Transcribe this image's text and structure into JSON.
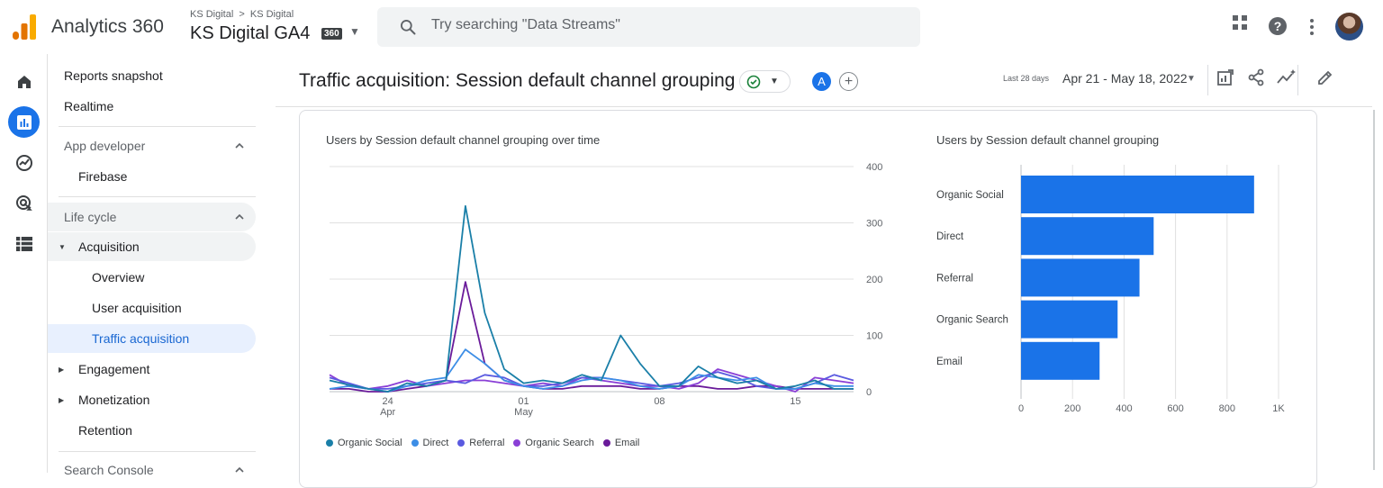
{
  "header": {
    "app_name": "Analytics 360",
    "account_crumb_1": "KS Digital",
    "account_crumb_2": "KS Digital",
    "property_name": "KS Digital GA4",
    "property_badge": "360",
    "search_placeholder": "Try searching \"Data Streams\"",
    "icons": [
      "apps-grid-icon",
      "help-icon",
      "more-vert-icon",
      "avatar"
    ]
  },
  "rail": {
    "items": [
      "home-icon",
      "reports-icon",
      "explore-icon",
      "advertising-icon",
      "configure-icon"
    ],
    "active": "reports-icon"
  },
  "nav": {
    "reports_snapshot": "Reports snapshot",
    "realtime": "Realtime",
    "app_developer": "App developer",
    "firebase": "Firebase",
    "life_cycle": "Life cycle",
    "acquisition": "Acquisition",
    "overview": "Overview",
    "user_acquisition": "User acquisition",
    "traffic_acquisition": "Traffic acquisition",
    "engagement": "Engagement",
    "monetization": "Monetization",
    "retention": "Retention",
    "search_console": "Search Console"
  },
  "report": {
    "title": "Traffic acquisition: Session default channel grouping",
    "compare_badge": "A",
    "compare_add": "+",
    "date_prefix": "Last 28 days",
    "date_range": "Apr 21 - May 18, 2022"
  },
  "colors": {
    "organic_social": "#1a7fa8",
    "direct": "#3d8ee6",
    "referral": "#5a5ae0",
    "organic_search": "#8a3fd6",
    "email": "#6a1b9a",
    "bar": "#1a73e8"
  },
  "chart_data": [
    {
      "type": "line",
      "title": "Users by Session default channel grouping over time",
      "x": [
        "Apr 21",
        "Apr 22",
        "Apr 23",
        "Apr 24",
        "Apr 25",
        "Apr 26",
        "Apr 27",
        "Apr 28",
        "Apr 29",
        "Apr 30",
        "May 1",
        "May 2",
        "May 3",
        "May 4",
        "May 5",
        "May 6",
        "May 7",
        "May 8",
        "May 9",
        "May 10",
        "May 11",
        "May 12",
        "May 13",
        "May 14",
        "May 15",
        "May 16",
        "May 17",
        "May 18"
      ],
      "x_tick_labels": [
        {
          "day": "24",
          "month": "Apr",
          "index": 3
        },
        {
          "day": "01",
          "month": "May",
          "index": 10
        },
        {
          "day": "08",
          "month": "",
          "index": 17
        },
        {
          "day": "15",
          "month": "",
          "index": 24
        }
      ],
      "y_ticks": [
        "0",
        "100",
        "200",
        "300",
        "400"
      ],
      "ylim": [
        0,
        400
      ],
      "series": [
        {
          "name": "Organic Social",
          "color_key": "organic_social",
          "values": [
            20,
            12,
            5,
            0,
            15,
            10,
            20,
            330,
            140,
            40,
            15,
            20,
            15,
            30,
            20,
            100,
            50,
            10,
            10,
            45,
            25,
            15,
            20,
            5,
            10,
            20,
            5,
            5
          ]
        },
        {
          "name": "Direct",
          "color_key": "direct",
          "values": [
            5,
            10,
            5,
            0,
            10,
            20,
            25,
            75,
            50,
            20,
            10,
            5,
            10,
            20,
            25,
            20,
            10,
            5,
            10,
            30,
            25,
            20,
            25,
            5,
            5,
            15,
            10,
            10
          ]
        },
        {
          "name": "Referral",
          "color_key": "referral",
          "values": [
            25,
            15,
            5,
            5,
            10,
            15,
            20,
            15,
            30,
            25,
            10,
            10,
            15,
            25,
            25,
            20,
            15,
            10,
            15,
            25,
            35,
            25,
            10,
            5,
            5,
            15,
            30,
            20
          ]
        },
        {
          "name": "Organic Search",
          "color_key": "organic_search",
          "values": [
            30,
            10,
            5,
            10,
            20,
            10,
            15,
            20,
            20,
            15,
            10,
            15,
            10,
            25,
            20,
            15,
            10,
            10,
            5,
            15,
            40,
            30,
            20,
            10,
            0,
            25,
            20,
            15
          ]
        },
        {
          "name": "Email",
          "color_key": "email",
          "values": [
            5,
            5,
            0,
            0,
            5,
            10,
            20,
            195,
            50,
            20,
            10,
            5,
            5,
            10,
            10,
            10,
            5,
            5,
            10,
            10,
            5,
            5,
            10,
            10,
            5,
            5,
            5,
            5
          ]
        }
      ]
    },
    {
      "type": "bar",
      "orientation": "horizontal",
      "title": "Users by Session default channel grouping",
      "categories": [
        "Organic Social",
        "Direct",
        "Referral",
        "Organic Search",
        "Email"
      ],
      "values": [
        905,
        515,
        460,
        375,
        305
      ],
      "x_ticks": [
        "0",
        "200",
        "400",
        "600",
        "800",
        "1K"
      ],
      "xlim": [
        0,
        1000
      ]
    }
  ]
}
